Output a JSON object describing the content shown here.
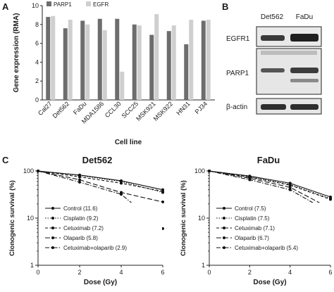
{
  "panels": {
    "A": "A",
    "B": "B",
    "C": "C"
  },
  "blot": {
    "columns": [
      "Det562",
      "FaDu"
    ],
    "rows": [
      "EGFR1",
      "PARP1",
      "β-actin"
    ]
  },
  "chart_data": [
    {
      "type": "bar",
      "ylabel": "Gene expression (RMA)",
      "xlabel": "Cell line",
      "ylim": [
        0,
        10
      ],
      "yticks": [
        0,
        2,
        4,
        6,
        8,
        10
      ],
      "legend_position": "top-left",
      "categories": [
        "Cal27",
        "Det562",
        "FaDu",
        "MDA1586",
        "CCL30",
        "SCC25",
        "MSK921",
        "MSK922",
        "HN31",
        "PJ34"
      ],
      "series": [
        {
          "name": "PARP1",
          "color": "#6d6d6d",
          "values": [
            8.8,
            7.6,
            8.4,
            8.6,
            8.6,
            8.0,
            6.9,
            7.3,
            5.9,
            8.4
          ]
        },
        {
          "name": "EGFR",
          "color": "#cfcfcf",
          "values": [
            8.9,
            8.5,
            8.0,
            7.4,
            3.0,
            7.9,
            9.1,
            7.9,
            8.5,
            8.5
          ]
        }
      ]
    },
    {
      "type": "line",
      "title": "Det562",
      "xlabel": "Dose (Gy)",
      "ylabel": "Clonogenic survival (%)",
      "yscale": "log",
      "ylim": [
        1,
        100
      ],
      "xlim": [
        0,
        6
      ],
      "xticks": [
        0,
        2,
        4,
        6
      ],
      "yticks": [
        1,
        10,
        100
      ],
      "x": [
        0,
        2,
        4,
        6
      ],
      "series": [
        {
          "name": "Control (11.6)",
          "style": "solid",
          "values": [
            100,
            82,
            62,
            40
          ]
        },
        {
          "name": "Cisplatin (9.2)",
          "style": "dotted",
          "values": [
            100,
            80,
            60,
            35
          ]
        },
        {
          "name": "Cetuximab (7.2)",
          "style": "dashed",
          "values": [
            100,
            75,
            55,
            37
          ]
        },
        {
          "name": "Olaparib (5.8)",
          "style": "longdash",
          "values": [
            100,
            65,
            35,
            22
          ]
        },
        {
          "name": "Cetuximab+olaparib (2.9)",
          "style": "dashdot",
          "values": [
            100,
            58,
            32,
            6
          ]
        }
      ]
    },
    {
      "type": "line",
      "title": "FaDu",
      "xlabel": "Dose (Gy)",
      "ylabel": "Clonogenic survival (%)",
      "yscale": "log",
      "ylim": [
        1,
        100
      ],
      "xlim": [
        0,
        6
      ],
      "xticks": [
        0,
        2,
        4,
        6
      ],
      "yticks": [
        1,
        10,
        100
      ],
      "x": [
        0,
        2,
        4,
        6
      ],
      "series": [
        {
          "name": "Control (7.5)",
          "style": "solid",
          "values": [
            100,
            78,
            55,
            28
          ]
        },
        {
          "name": "Cisplatin (7.5)",
          "style": "dotted",
          "values": [
            100,
            75,
            52,
            26
          ]
        },
        {
          "name": "Cetuximab (7.1)",
          "style": "dashed",
          "values": [
            100,
            74,
            50,
            25
          ]
        },
        {
          "name": "Olaparib (6.7)",
          "style": "longdash",
          "values": [
            100,
            70,
            45,
            16
          ]
        },
        {
          "name": "Cetuximab+olaparib (5.4)",
          "style": "dashdot",
          "values": [
            100,
            65,
            40,
            13
          ]
        }
      ]
    }
  ]
}
